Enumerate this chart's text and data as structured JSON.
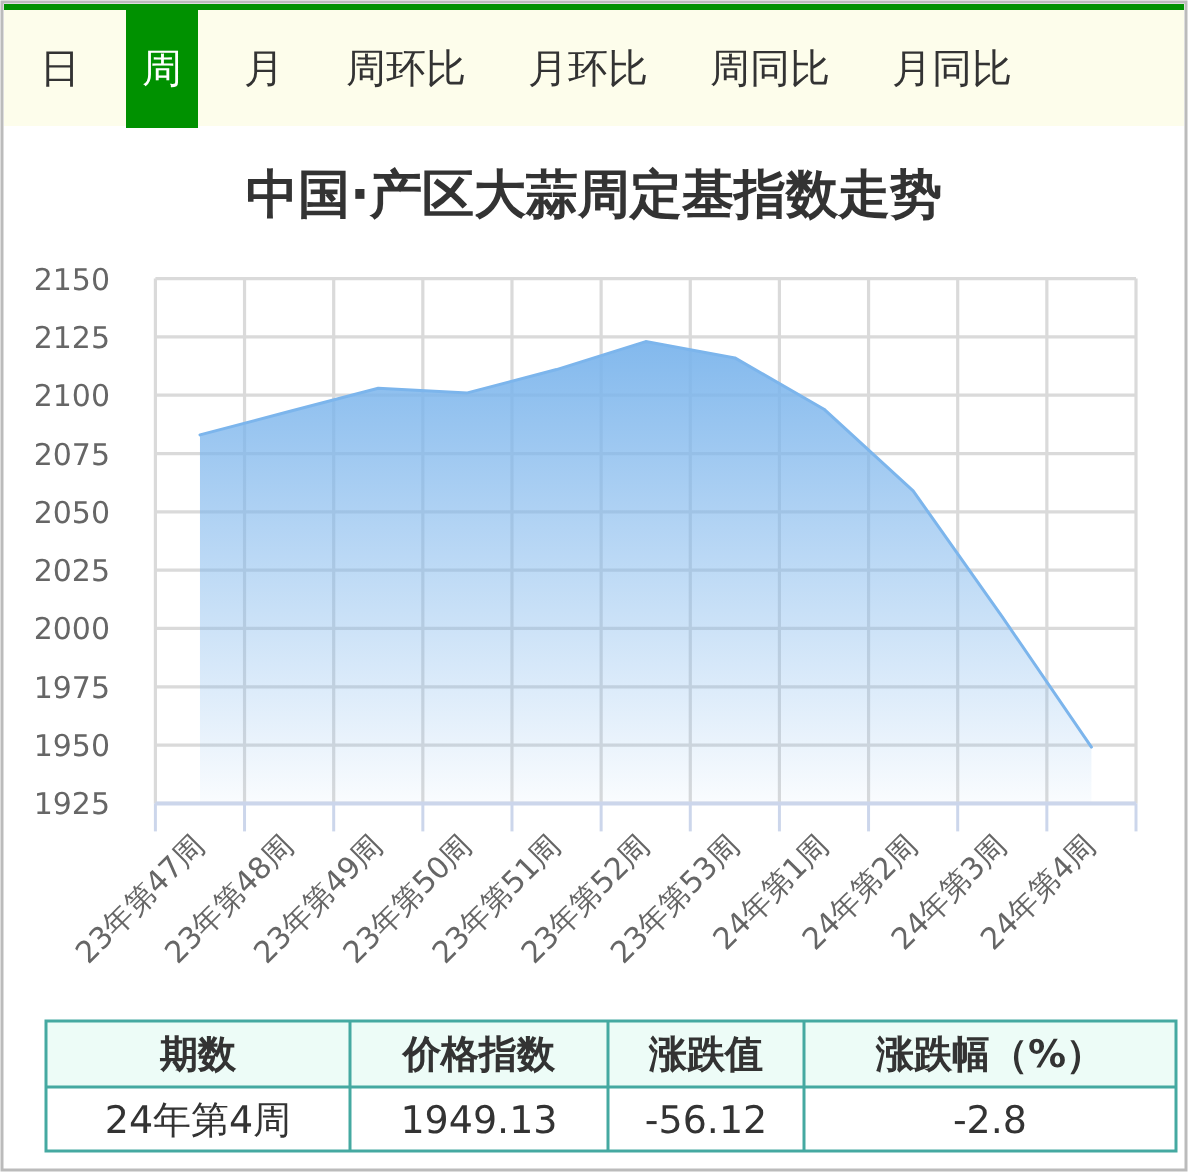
{
  "chart_data": {
    "type": "area",
    "title": "中国·产区大蒜周定基指数走势",
    "categories": [
      "23年第47周",
      "23年第48周",
      "23年第49周",
      "23年第50周",
      "23年第51周",
      "23年第52周",
      "23年第53周",
      "24年第1周",
      "24年第2周",
      "24年第3周",
      "24年第4周"
    ],
    "values": [
      2083,
      2093,
      2103,
      2101,
      2111,
      2123,
      2116,
      2094,
      2059,
      2005,
      1949.13
    ],
    "color": "#7cb5ec",
    "ylim": [
      1925,
      2150
    ],
    "yticks": [
      1925,
      1950,
      1975,
      2000,
      2025,
      2050,
      2075,
      2100,
      2125,
      2150
    ],
    "grid": true,
    "annotations": [
      "日",
      "周",
      "月",
      "周环比",
      "月环比",
      "周同比",
      "月同比",
      "期数",
      "价格指数",
      "涨跌值",
      "涨跌幅（%）",
      "24年第4周",
      "1949.13",
      "-56.12",
      "-2.8"
    ]
  }
}
